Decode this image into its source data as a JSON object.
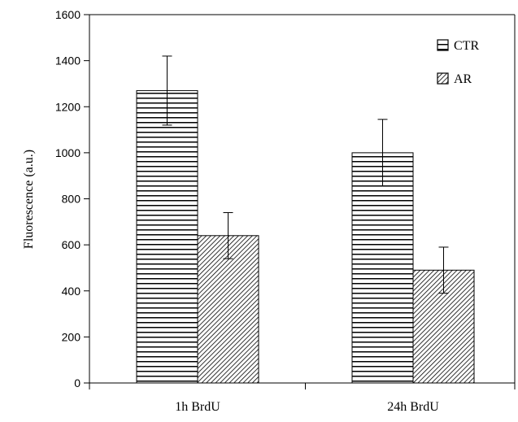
{
  "chart_data": {
    "type": "bar",
    "title": "",
    "xlabel": "",
    "ylabel": "Fluorescence (a.u.)",
    "ylim": [
      0,
      1600
    ],
    "yticks": [
      0,
      200,
      400,
      600,
      800,
      1000,
      1200,
      1400,
      1600
    ],
    "categories": [
      "1h BrdU",
      "24h BrdU"
    ],
    "series": [
      {
        "name": "CTR",
        "pattern": "horizontal-lines",
        "values": [
          1270,
          1000
        ],
        "error": [
          150,
          145
        ]
      },
      {
        "name": "AR",
        "pattern": "diagonal-hatch",
        "values": [
          640,
          490
        ],
        "error": [
          100,
          100
        ]
      }
    ],
    "legend_position": "top-right",
    "grid": false
  }
}
